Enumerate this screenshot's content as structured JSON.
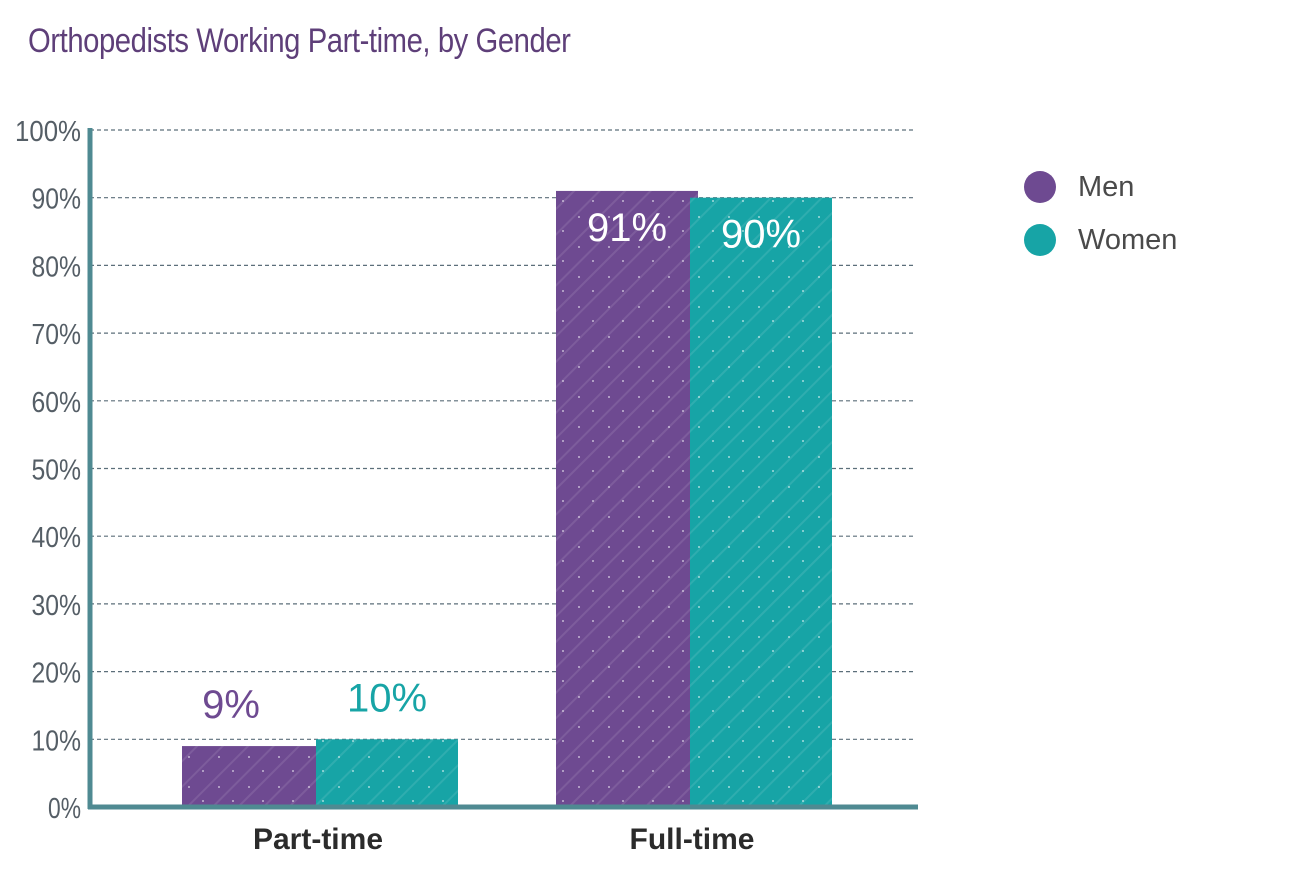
{
  "chart_data": {
    "type": "bar",
    "title": "Orthopedists Working Part-time, by Gender",
    "categories": [
      "Part-time",
      "Full-time"
    ],
    "series": [
      {
        "name": "Men",
        "values": [
          9,
          91
        ],
        "labels": [
          "9%",
          "91%"
        ],
        "color": "#6e4a91"
      },
      {
        "name": "Women",
        "values": [
          10,
          90
        ],
        "labels": [
          "10%",
          "90%"
        ],
        "color": "#17a4a6"
      }
    ],
    "ylim": [
      0,
      100
    ],
    "yticks": [
      "0%",
      "10%",
      "20%",
      "30%",
      "40%",
      "50%",
      "60%",
      "70%",
      "80%",
      "90%",
      "100%"
    ],
    "grid": true,
    "legend_position": "right",
    "axis_color": "#4f8a92",
    "label_colors": {
      "outside_men": "#6e4a91",
      "outside_women": "#17a4a6",
      "inside": "#ffffff"
    }
  }
}
